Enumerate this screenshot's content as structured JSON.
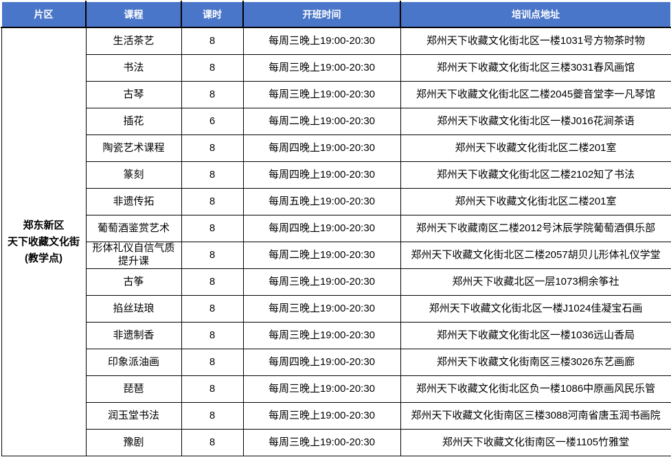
{
  "colors": {
    "header_bg": "#4A76C9",
    "header_text": "#FFFFFF",
    "border": "#000000",
    "cell_bg": "#FFFFFF",
    "body_text": "#000000"
  },
  "table": {
    "headers": [
      "片区",
      "课程",
      "课时",
      "开班时间",
      "培训点地址"
    ],
    "district": "郑东新区\n天下收藏文化街\n(教学点)",
    "rows": [
      {
        "course": "生活茶艺",
        "hours": "8",
        "schedule": "每周三晚上19:00-20:30",
        "address": "郑州天下收藏文化街北区一楼1031号方物茶时物"
      },
      {
        "course": "书法",
        "hours": "8",
        "schedule": "每周三晚上19:00-20:30",
        "address": "郑州天下收藏文化街北区三楼3031春风画馆"
      },
      {
        "course": "古琴",
        "hours": "8",
        "schedule": "每周三晚上19:00-20:30",
        "address": "郑州天下收藏文化街北区二楼2045夔音堂李一凡琴馆"
      },
      {
        "course": "插花",
        "hours": "6",
        "schedule": "每周二晚上19:00-20:30",
        "address": "郑州天下收藏文化街北区一楼J016花涧茶语"
      },
      {
        "course": "陶瓷艺术课程",
        "hours": "8",
        "schedule": "每周四晚上19:00-20:30",
        "address": "郑州天下收藏文化街北区二楼201室"
      },
      {
        "course": "篆刻",
        "hours": "8",
        "schedule": "每周四晚上19:00-20:30",
        "address": "郑州天下收藏文化街北区二楼2102知了书法"
      },
      {
        "course": "非遗传拓",
        "hours": "8",
        "schedule": "每周五晚上19:00-20:30",
        "address": "郑州天下收藏文化街北区二楼201室"
      },
      {
        "course": "葡萄酒鉴赏艺术",
        "hours": "8",
        "schedule": "每周四晚上19:00-20:30",
        "address": "郑州天下收藏南区二楼2012号沐辰学院葡萄酒俱乐部"
      },
      {
        "course": "形体礼仪自信气质提升课",
        "hours": "8",
        "schedule": "每周二晚上19:00-20:30",
        "address": "郑州天下收藏文化街北区二楼2057胡贝儿形体礼仪学堂"
      },
      {
        "course": "古筝",
        "hours": "8",
        "schedule": "每周三晚上19:00-20:30",
        "address": "郑州天下收藏北区一层1073桐余筝社"
      },
      {
        "course": "掐丝珐琅",
        "hours": "8",
        "schedule": "每周三晚上19:00-20:30",
        "address": "郑州天下收藏文化街北区一楼J1024佳凝宝石画"
      },
      {
        "course": "非遗制香",
        "hours": "8",
        "schedule": "每周三晚上19:00-20:30",
        "address": "郑州天下收藏文化街北区一楼1036远山香局"
      },
      {
        "course": "印象派油画",
        "hours": "8",
        "schedule": "每周四晚上19:00-20:30",
        "address": "郑州天下收藏文化街南区三楼3026东艺画廊"
      },
      {
        "course": "琵琶",
        "hours": "8",
        "schedule": "每周三晚上19:00-20:30",
        "address": "郑州天下收藏文化街北区负一楼1086中原画风民乐管"
      },
      {
        "course": "润玉堂书法",
        "hours": "8",
        "schedule": "每周三晚上19:00-20:30",
        "address": "郑州天下收藏文化街南区三楼3088河南省唐玉润书画院"
      },
      {
        "course": "豫剧",
        "hours": "8",
        "schedule": "每周三晚上19:00-20:30",
        "address": "郑州天下收藏文化街南区一楼1105竹雅堂"
      }
    ]
  }
}
